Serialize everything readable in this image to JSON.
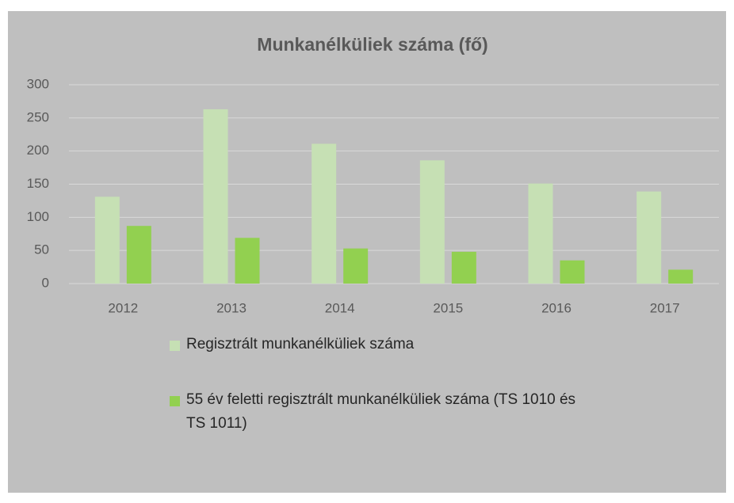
{
  "chart_data": {
    "type": "bar",
    "title": "Munkanélküliek száma (fő)",
    "categories": [
      "2012",
      "2013",
      "2014",
      "2015",
      "2016",
      "2017"
    ],
    "series": [
      {
        "name": "Regisztrált munkanélküliek száma",
        "color": "#c6e0b4",
        "values": [
          131,
          263,
          211,
          186,
          151,
          139
        ]
      },
      {
        "name": "55 év feletti regisztrált munkanélküliek száma (TS 1010 és TS 1011)",
        "color": "#92d050",
        "values": [
          87,
          69,
          53,
          48,
          35,
          21
        ]
      }
    ],
    "ylim": [
      0,
      300
    ],
    "yticks": [
      0,
      50,
      100,
      150,
      200,
      250,
      300
    ],
    "grid": true,
    "legend": "bottom"
  }
}
